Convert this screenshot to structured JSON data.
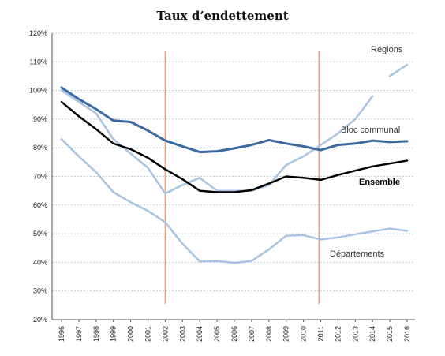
{
  "chart_data": {
    "type": "line",
    "title": "Taux d’endettement",
    "xlabel": "",
    "ylabel": "",
    "x": [
      "1996",
      "1997",
      "1998",
      "1999",
      "2000",
      "2001",
      "2002",
      "2003",
      "2004",
      "2005",
      "2006",
      "2007",
      "2008",
      "2009",
      "2010",
      "2011",
      "2012",
      "2013",
      "2014",
      "2015",
      "2016"
    ],
    "ylim": [
      20,
      120
    ],
    "yticks": [
      "20%",
      "30%",
      "40%",
      "50%",
      "60%",
      "70%",
      "80%",
      "90%",
      "100%",
      "110%",
      "120%"
    ],
    "grid": true,
    "legend": "inline labels",
    "series": [
      {
        "name": "Régions",
        "color": "#a9c3e0",
        "width": 2.5,
        "values": [
          100,
          96,
          92,
          83,
          78,
          73,
          64,
          67,
          69.5,
          65,
          65,
          65,
          67,
          74,
          77,
          81,
          85,
          90,
          98,
          105,
          109
        ],
        "break_after_index": 18
      },
      {
        "name": "Bloc communal",
        "color": "#3d6a9e",
        "width": 3,
        "values": [
          101,
          97,
          93.5,
          89.5,
          89,
          86,
          82.5,
          80.5,
          78.5,
          78.8,
          79.8,
          81,
          82.7,
          81.5,
          80.5,
          79.2,
          81,
          81.5,
          82.5,
          82,
          82.3
        ]
      },
      {
        "name": "Ensemble",
        "color": "#000000",
        "width": 2.5,
        "values": [
          96,
          91,
          86.5,
          81.5,
          79.5,
          76.5,
          72.5,
          69,
          65,
          64.5,
          64.5,
          65.2,
          67.5,
          70,
          69.5,
          68.8,
          70.5,
          72,
          73.5,
          74.5,
          75.5
        ]
      },
      {
        "name": "Départements",
        "color": "#a9c3e0",
        "width": 2.5,
        "values": [
          83,
          77,
          71.5,
          64.5,
          61,
          58,
          54,
          46.5,
          40.3,
          40.5,
          39.8,
          40.5,
          44.5,
          49.3,
          49.5,
          48,
          48.7,
          49.8,
          50.8,
          51.8,
          51
        ]
      }
    ],
    "vertical_markers": [
      {
        "x": "2002",
        "color": "#e8a07a"
      },
      {
        "x": "2010.9",
        "color": "#e8a07a"
      }
    ]
  }
}
